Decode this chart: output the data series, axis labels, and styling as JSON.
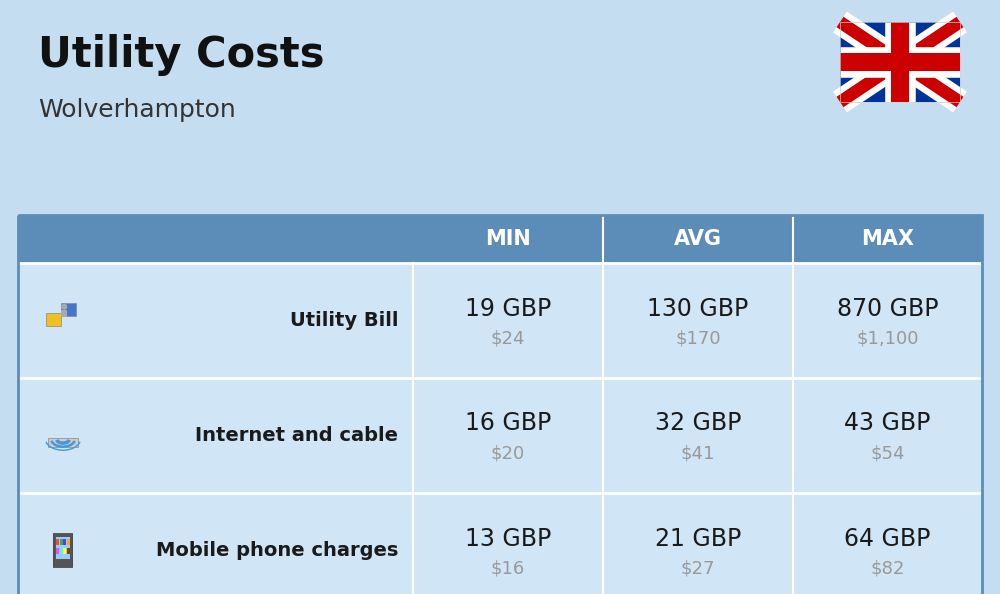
{
  "title": "Utility Costs",
  "subtitle": "Wolverhampton",
  "bg_color": "#c5ddf0",
  "table_header_color": "#5b8db8",
  "table_row_color": "#d0e5f5",
  "header_text_color": "#ffffff",
  "value_color": "#1a1a1a",
  "usd_color": "#999999",
  "label_color": "#1a1a1a",
  "divider_color": "#ffffff",
  "rows": [
    {
      "label": "Utility Bill",
      "min_gbp": "19 GBP",
      "min_usd": "$24",
      "avg_gbp": "130 GBP",
      "avg_usd": "$170",
      "max_gbp": "870 GBP",
      "max_usd": "$1,100"
    },
    {
      "label": "Internet and cable",
      "min_gbp": "16 GBP",
      "min_usd": "$20",
      "avg_gbp": "32 GBP",
      "avg_usd": "$41",
      "max_gbp": "43 GBP",
      "max_usd": "$54"
    },
    {
      "label": "Mobile phone charges",
      "min_gbp": "13 GBP",
      "min_usd": "$16",
      "avg_gbp": "21 GBP",
      "avg_usd": "$27",
      "max_gbp": "64 GBP",
      "max_usd": "$82"
    }
  ],
  "title_fontsize": 30,
  "subtitle_fontsize": 18,
  "header_fontsize": 15,
  "label_fontsize": 14,
  "value_fontsize": 17,
  "usd_fontsize": 13
}
